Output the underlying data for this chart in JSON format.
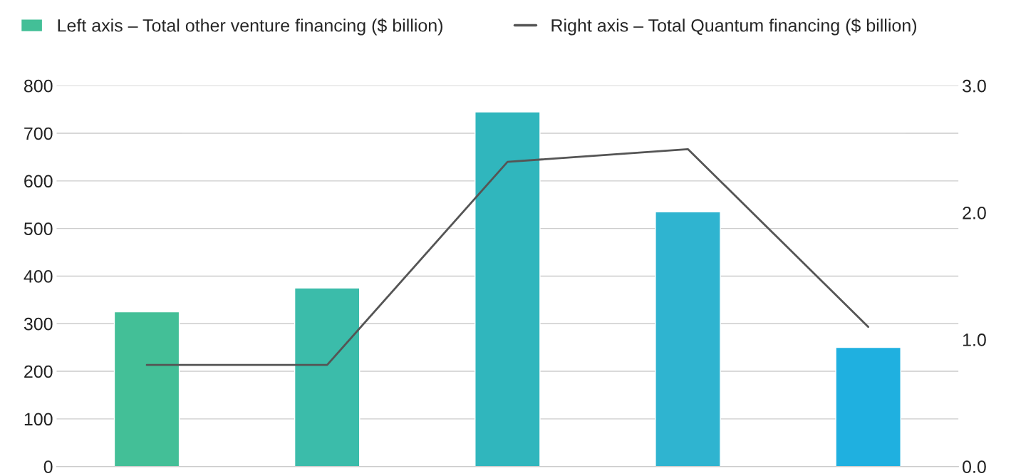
{
  "chart_data": {
    "type": "bar",
    "categories": [
      null,
      null,
      null,
      null,
      null
    ],
    "series": [
      {
        "name": "Left axis – Total other venture financing ($ billion)",
        "colors": [
          "#43bf97",
          "#3bbcaa",
          "#30b6bd",
          "#2fb4d0",
          "#1fb0e0"
        ],
        "values": [
          325,
          375,
          745,
          535,
          250
        ]
      },
      {
        "name": "Right axis – Total Quantum financing ($ billion)",
        "type": "line",
        "axis": "y2",
        "color": "#555555",
        "values": [
          0.8,
          0.8,
          2.4,
          2.5,
          1.1
        ]
      }
    ],
    "ylim": [
      0,
      800
    ],
    "yticks": [
      0,
      100,
      200,
      300,
      400,
      500,
      600,
      700,
      800
    ],
    "y2lim": [
      0,
      3
    ],
    "y2ticks": [
      {
        "value": 0,
        "label": "0.0"
      },
      {
        "value": 1,
        "label": "1.0"
      },
      {
        "value": 2,
        "label": "2.0"
      },
      {
        "value": 3,
        "label": "3.0"
      }
    ],
    "grid": "y",
    "legend": "top",
    "marker": "none",
    "line_style": "solid"
  }
}
